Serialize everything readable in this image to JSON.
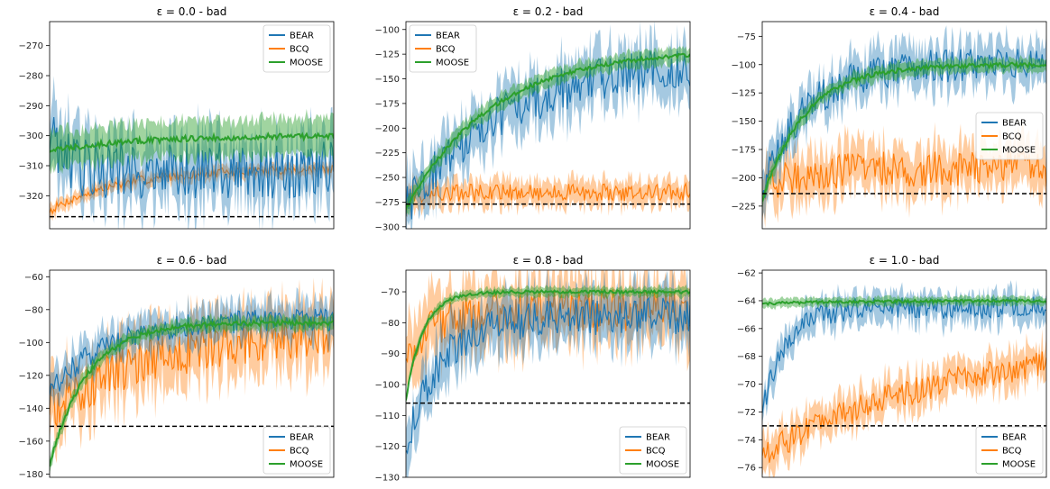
{
  "colors": {
    "BEAR": "#1f77b4",
    "BCQ": "#ff7f0e",
    "MOOSE": "#2ca02c",
    "baseline": "#000000"
  },
  "chart_data": [
    {
      "type": "line",
      "title_prefix": "ε = 0.0",
      "title_suffix": " - bad",
      "ylim": [
        -331,
        -262
      ],
      "yticks": [
        -270,
        -280,
        -290,
        -300,
        -310,
        -320
      ],
      "legend": "top-right",
      "series": [
        {
          "name": "BEAR",
          "start": -300,
          "plateau": -312,
          "rise": 0.05,
          "noise": 10,
          "band": 10
        },
        {
          "name": "BCQ",
          "start": -325,
          "plateau": -311,
          "rise": 0.25,
          "noise": 1.5,
          "band": 2
        },
        {
          "name": "MOOSE",
          "start": -305,
          "plateau": -300,
          "rise": 0.3,
          "noise": 1,
          "band": 6
        }
      ],
      "baseline": -327
    },
    {
      "type": "line",
      "title_prefix": "ε = 0.2",
      "title_suffix": " - bad",
      "ylim": [
        -302,
        -92
      ],
      "yticks": [
        -100,
        -125,
        -150,
        -175,
        -200,
        -225,
        -250,
        -275,
        -300
      ],
      "legend": "top-left",
      "series": [
        {
          "name": "BEAR",
          "start": -280,
          "plateau": -130,
          "rise": 0.35,
          "noise": 22,
          "band": 25
        },
        {
          "name": "BCQ",
          "start": -270,
          "plateau": -265,
          "rise": 0.1,
          "noise": 9,
          "band": 12
        },
        {
          "name": "MOOSE",
          "start": -282,
          "plateau": -120,
          "rise": 0.3,
          "noise": 2,
          "band": 8
        }
      ],
      "baseline": -277
    },
    {
      "type": "line",
      "title_prefix": "ε = 0.4",
      "title_suffix": " - bad",
      "ylim": [
        -245,
        -62
      ],
      "yticks": [
        -75,
        -100,
        -125,
        -150,
        -175,
        -200,
        -225
      ],
      "legend": "center-right",
      "series": [
        {
          "name": "BEAR",
          "start": -210,
          "plateau": -100,
          "rise": 0.15,
          "noise": 15,
          "band": 18
        },
        {
          "name": "BCQ",
          "start": -215,
          "plateau": -192,
          "rise": 0.1,
          "noise": 16,
          "band": 20
        },
        {
          "name": "MOOSE",
          "start": -220,
          "plateau": -100,
          "rise": 0.15,
          "noise": 2,
          "band": 6
        }
      ],
      "baseline": -214
    },
    {
      "type": "line",
      "title_prefix": "ε = 0.6",
      "title_suffix": " - bad",
      "ylim": [
        -182,
        -56
      ],
      "yticks": [
        -60,
        -80,
        -100,
        -120,
        -140,
        -160,
        -180
      ],
      "legend": "bottom-right",
      "series": [
        {
          "name": "BEAR",
          "start": -130,
          "plateau": -86,
          "rise": 0.2,
          "noise": 7,
          "band": 10
        },
        {
          "name": "BCQ",
          "start": -140,
          "plateau": -88,
          "rise": 0.45,
          "noise": 14,
          "band": 18
        },
        {
          "name": "MOOSE",
          "start": -175,
          "plateau": -88,
          "rise": 0.13,
          "noise": 1.5,
          "band": 4
        }
      ],
      "baseline": -151
    },
    {
      "type": "line",
      "title_prefix": "ε = 0.8",
      "title_suffix": " - bad",
      "ylim": [
        -130,
        -63
      ],
      "yticks": [
        -70,
        -80,
        -90,
        -100,
        -110,
        -120,
        -130
      ],
      "legend": "bottom-right",
      "series": [
        {
          "name": "BEAR",
          "start": -120,
          "plateau": -78,
          "rise": 0.12,
          "noise": 6,
          "band": 8
        },
        {
          "name": "BCQ",
          "start": -90,
          "plateau": -76,
          "rise": 0.12,
          "noise": 7,
          "band": 10
        },
        {
          "name": "MOOSE",
          "start": -105,
          "plateau": -70,
          "rise": 0.06,
          "noise": 0.5,
          "band": 1.5
        }
      ],
      "baseline": -106
    },
    {
      "type": "line",
      "title_prefix": "ε = 1.0",
      "title_suffix": " - bad",
      "ylim": [
        -76.7,
        -61.8
      ],
      "yticks": [
        -62,
        -64,
        -66,
        -68,
        -70,
        -72,
        -74,
        -76
      ],
      "legend": "bottom-right",
      "series": [
        {
          "name": "BEAR",
          "start": -72,
          "plateau": -64.5,
          "rise": 0.08,
          "noise": 0.8,
          "band": 1
        },
        {
          "name": "BCQ",
          "start": -75,
          "plateau": -66.5,
          "rise": 0.7,
          "noise": 1,
          "band": 1.2
        },
        {
          "name": "MOOSE",
          "start": -64.2,
          "plateau": -64,
          "rise": 0.3,
          "noise": 0.1,
          "band": 0.3
        }
      ],
      "baseline": -73
    }
  ]
}
